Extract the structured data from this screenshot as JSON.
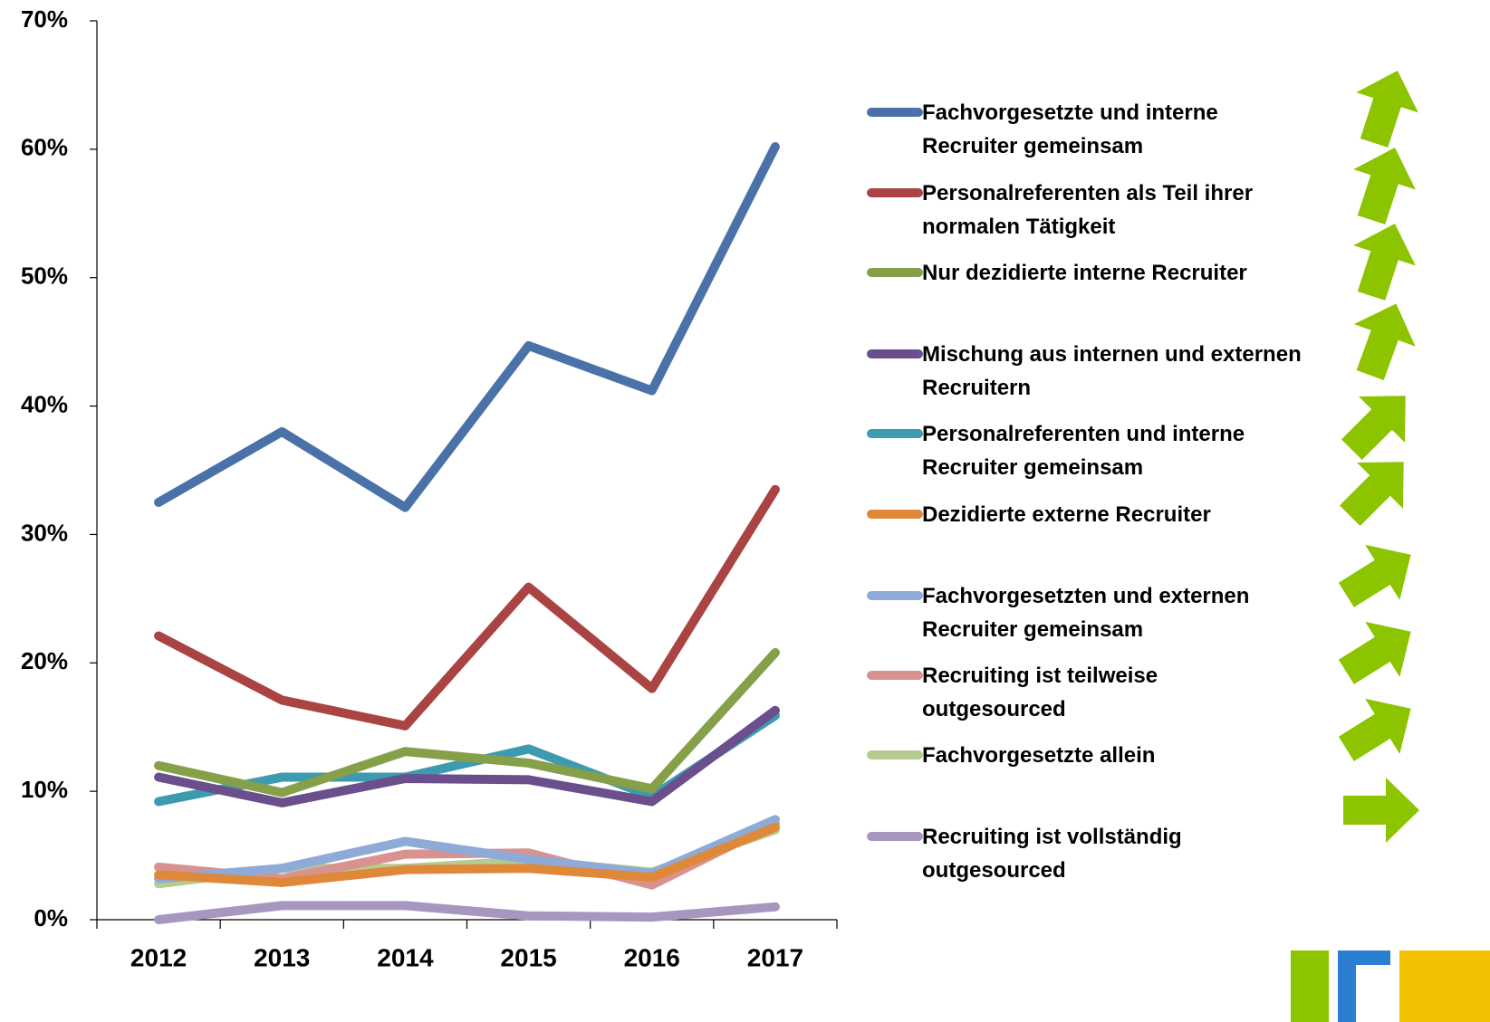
{
  "chart_data": {
    "type": "line",
    "categories": [
      "2012",
      "2013",
      "2014",
      "2015",
      "2016",
      "2017"
    ],
    "ylim": [
      0,
      70
    ],
    "yticks": [
      {
        "value": 0,
        "label": "0%"
      },
      {
        "value": 10,
        "label": "10%"
      },
      {
        "value": 20,
        "label": "20%"
      },
      {
        "value": 30,
        "label": "30%"
      },
      {
        "value": 40,
        "label": "40%"
      },
      {
        "value": 50,
        "label": "50%"
      },
      {
        "value": 60,
        "label": "60%"
      },
      {
        "value": 70,
        "label": "70%"
      }
    ],
    "legend": "right",
    "series": [
      {
        "name": "Fachvorgesetzte und interne Recruiter gemeinsam",
        "color": "#4a72a8",
        "values": [
          32.5,
          38.0,
          32.1,
          44.7,
          41.2,
          60.2
        ]
      },
      {
        "name": "Personalreferenten als Teil ihrer normalen Tätigkeit",
        "color": "#a94442",
        "values": [
          22.1,
          17.1,
          15.1,
          25.9,
          18.0,
          33.5
        ]
      },
      {
        "name": "Nur dezidierte interne Recruiter",
        "color": "#86a04a",
        "values": [
          12.0,
          9.9,
          13.1,
          12.2,
          10.2,
          20.8
        ]
      },
      {
        "name": "Mischung aus internen und externen Recruitern",
        "color": "#6a4f8c",
        "values": [
          11.1,
          9.1,
          11.0,
          10.9,
          9.2,
          16.3
        ]
      },
      {
        "name": "Personalreferenten und interne Recruiter gemeinsam",
        "color": "#3d9bb0",
        "values": [
          9.2,
          11.1,
          11.1,
          13.3,
          9.6,
          15.9
        ]
      },
      {
        "name": "Dezidierte externe Recruiter",
        "color": "#e0883a",
        "values": [
          3.5,
          2.9,
          3.9,
          4.0,
          3.3,
          7.2
        ]
      },
      {
        "name": "Fachvorgesetzten und externen Recruiter gemeinsam",
        "color": "#8eaad6",
        "values": [
          3.2,
          4.0,
          6.1,
          4.7,
          3.6,
          7.8
        ]
      },
      {
        "name": "Recruiting ist teilweise outgesourced",
        "color": "#d89390",
        "values": [
          4.1,
          3.2,
          5.1,
          5.2,
          2.7,
          7.5
        ]
      },
      {
        "name": "Fachvorgesetzte allein",
        "color": "#b5cb8f",
        "values": [
          2.8,
          4.0,
          4.0,
          4.6,
          3.7,
          7.0
        ]
      },
      {
        "name": "Recruiting ist vollständig outgesourced",
        "color": "#a696c0",
        "values": [
          0.0,
          1.1,
          1.1,
          0.3,
          0.2,
          1.0
        ]
      }
    ]
  }
}
